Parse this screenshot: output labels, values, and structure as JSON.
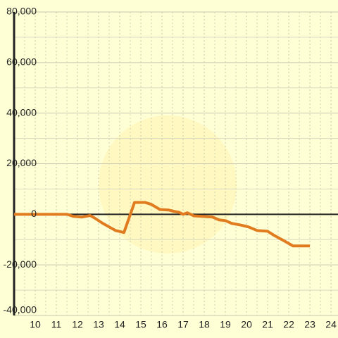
{
  "chart_data": {
    "type": "line",
    "x": [
      9,
      11.5,
      11.8,
      12.2,
      12.6,
      12.8,
      13.2,
      13.5,
      13.8,
      14.2,
      14.7,
      15.2,
      15.5,
      15.9,
      16.3,
      16.6,
      16.8,
      17.0,
      17.2,
      17.5,
      17.9,
      18.4,
      18.7,
      19.0,
      19.3,
      19.7,
      20.1,
      20.5,
      21.0,
      21.3,
      21.8,
      22.2,
      23.0
    ],
    "series": [
      {
        "color": "#e07b20",
        "values": [
          0,
          0,
          -800,
          -1100,
          -500,
          -1400,
          -3600,
          -5000,
          -6400,
          -7200,
          4700,
          4700,
          3900,
          1900,
          1700,
          1100,
          800,
          0,
          600,
          -600,
          -800,
          -1100,
          -2200,
          -2500,
          -3600,
          -4200,
          -5000,
          -6400,
          -6700,
          -8300,
          -10600,
          -12500,
          -12500
        ]
      }
    ],
    "xlim": [
      9,
      24.33
    ],
    "xticks": [
      10,
      11,
      12,
      13,
      14,
      15,
      16,
      17,
      18,
      19,
      20,
      21,
      22,
      23,
      24
    ],
    "ylim": [
      -40000,
      80000
    ],
    "yticks": [
      {
        "value": -40000,
        "label": "-40,000"
      },
      {
        "value": -20000,
        "label": "-20,000"
      },
      0,
      {
        "value": 20000,
        "label": "20,000"
      },
      {
        "value": 40000,
        "label": "40,000"
      },
      {
        "value": 60000,
        "label": "60,000"
      },
      {
        "value": 80000,
        "label": "80,000"
      }
    ],
    "grid": true
  }
}
